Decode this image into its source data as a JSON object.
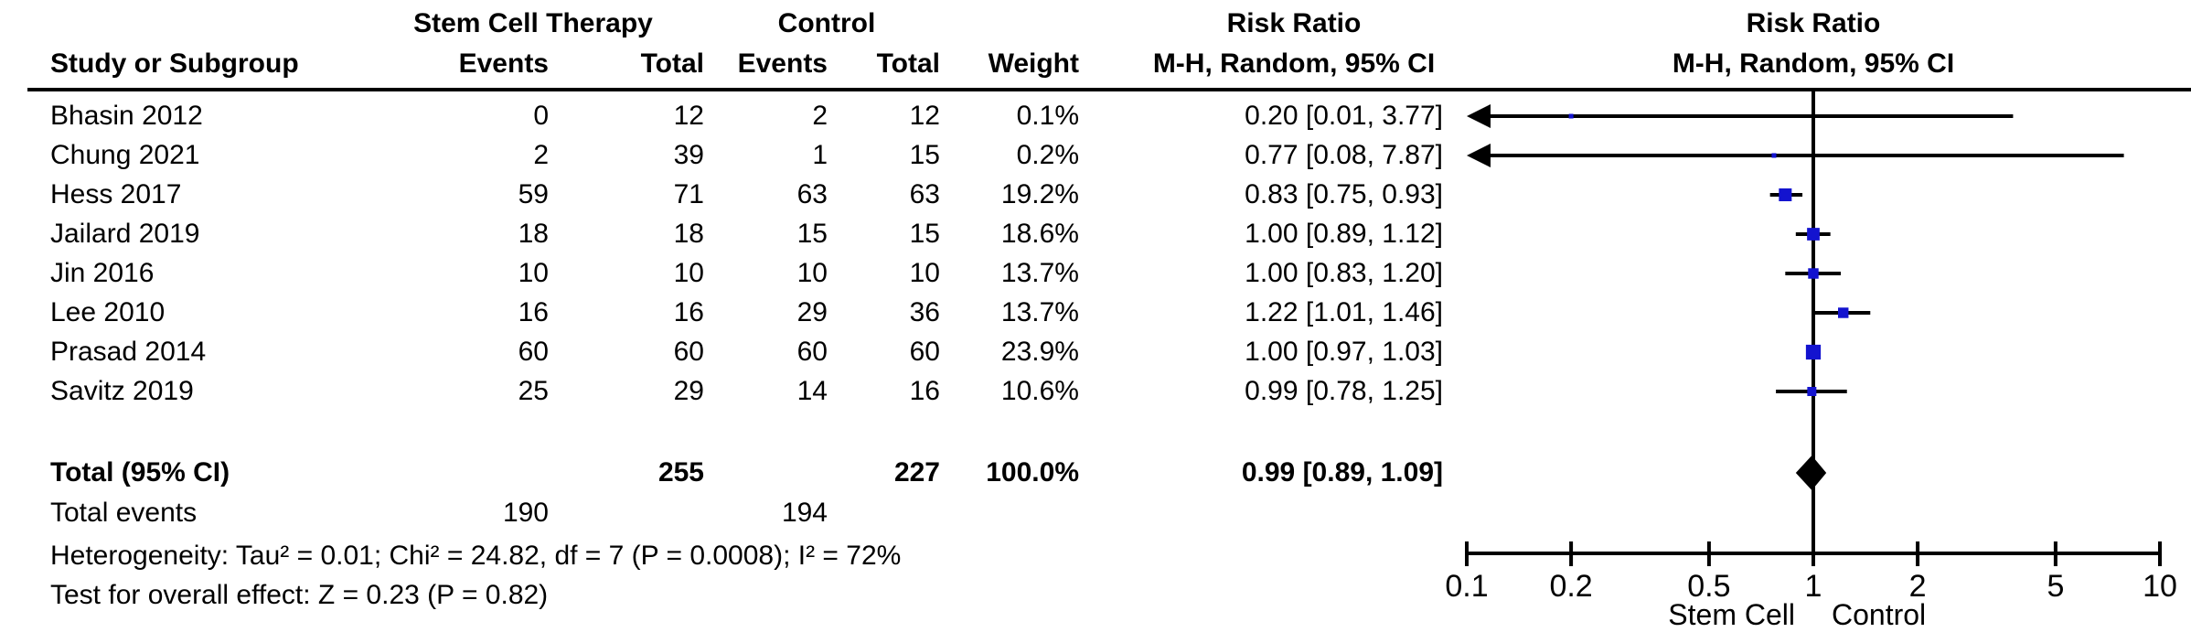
{
  "table": {
    "group1_header": "Stem Cell Therapy",
    "group2_header": "Control",
    "rr_header": "Risk Ratio",
    "mh_subheader": "M-H, Random, 95% CI",
    "col_study": "Study or Subgroup",
    "col_events": "Events",
    "col_total": "Total",
    "col_weight": "Weight",
    "total_label": "Total (95% CI)",
    "total_tx": "255",
    "total_ctrl": "227",
    "total_weight": "100.0%",
    "total_ci": "0.99 [0.89, 1.09]",
    "total_events_label": "Total events",
    "total_events_tx": "190",
    "total_events_ctrl": "194",
    "heterogeneity": "Heterogeneity: Tau² = 0.01; Chi² = 24.82, df = 7 (P = 0.0008); I² = 72%",
    "overall_effect": "Test for overall effect: Z = 0.23 (P = 0.82)"
  },
  "chart_data": {
    "type": "forest",
    "effect_measure": "Risk Ratio, M-H, Random, 95% CI",
    "scale": "log10",
    "marker_color": "#1313cf",
    "x_axis": {
      "min": 0.1,
      "max": 10,
      "ticks": [
        0.1,
        0.2,
        0.5,
        1,
        2,
        5,
        10
      ],
      "left_label": "Stem Cell",
      "right_label": "Control"
    },
    "studies": [
      {
        "name": "Bhasin 2012",
        "events_tx": 0,
        "total_tx": 12,
        "events_ctrl": 2,
        "total_ctrl": 12,
        "weight": "0.1%",
        "rr": 0.2,
        "ci_low": 0.01,
        "ci_high": 3.77,
        "ci_text": "0.20 [0.01, 3.77]"
      },
      {
        "name": "Chung 2021",
        "events_tx": 2,
        "total_tx": 39,
        "events_ctrl": 1,
        "total_ctrl": 15,
        "weight": "0.2%",
        "rr": 0.77,
        "ci_low": 0.08,
        "ci_high": 7.87,
        "ci_text": "0.77 [0.08, 7.87]"
      },
      {
        "name": "Hess 2017",
        "events_tx": 59,
        "total_tx": 71,
        "events_ctrl": 63,
        "total_ctrl": 63,
        "weight": "19.2%",
        "rr": 0.83,
        "ci_low": 0.75,
        "ci_high": 0.93,
        "ci_text": "0.83 [0.75, 0.93]"
      },
      {
        "name": "Jailard 2019",
        "events_tx": 18,
        "total_tx": 18,
        "events_ctrl": 15,
        "total_ctrl": 15,
        "weight": "18.6%",
        "rr": 1.0,
        "ci_low": 0.89,
        "ci_high": 1.12,
        "ci_text": "1.00 [0.89, 1.12]"
      },
      {
        "name": "Jin 2016",
        "events_tx": 10,
        "total_tx": 10,
        "events_ctrl": 10,
        "total_ctrl": 10,
        "weight": "13.7%",
        "rr": 1.0,
        "ci_low": 0.83,
        "ci_high": 1.2,
        "ci_text": "1.00 [0.83, 1.20]"
      },
      {
        "name": "Lee 2010",
        "events_tx": 16,
        "total_tx": 16,
        "events_ctrl": 29,
        "total_ctrl": 36,
        "weight": "13.7%",
        "rr": 1.22,
        "ci_low": 1.01,
        "ci_high": 1.46,
        "ci_text": "1.22 [1.01, 1.46]"
      },
      {
        "name": "Prasad 2014",
        "events_tx": 60,
        "total_tx": 60,
        "events_ctrl": 60,
        "total_ctrl": 60,
        "weight": "23.9%",
        "rr": 1.0,
        "ci_low": 0.97,
        "ci_high": 1.03,
        "ci_text": "1.00 [0.97, 1.03]"
      },
      {
        "name": "Savitz 2019",
        "events_tx": 25,
        "total_tx": 29,
        "events_ctrl": 14,
        "total_ctrl": 16,
        "weight": "10.6%",
        "rr": 0.99,
        "ci_low": 0.78,
        "ci_high": 1.25,
        "ci_text": "0.99 [0.78, 1.25]"
      }
    ],
    "overall": {
      "rr": 0.99,
      "ci_low": 0.89,
      "ci_high": 1.09,
      "ci_text": "0.99 [0.89, 1.09]",
      "total_tx": 255,
      "total_ctrl": 227,
      "weight": "100.0%"
    }
  }
}
